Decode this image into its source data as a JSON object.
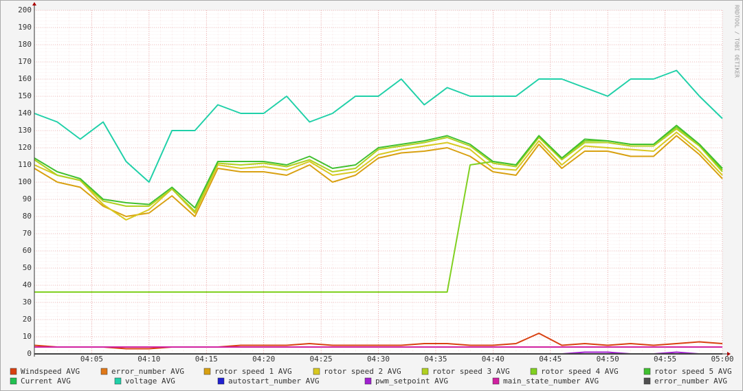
{
  "chart_data": {
    "type": "line",
    "watermark": "RRDTOOL / TOBI OETIKER",
    "x": [
      "04:00",
      "04:02",
      "04:04",
      "04:06",
      "04:08",
      "04:10",
      "04:12",
      "04:14",
      "04:16",
      "04:18",
      "04:20",
      "04:22",
      "04:24",
      "04:26",
      "04:28",
      "04:30",
      "04:32",
      "04:34",
      "04:36",
      "04:38",
      "04:40",
      "04:42",
      "04:44",
      "04:46",
      "04:48",
      "04:50",
      "04:52",
      "04:54",
      "04:56",
      "04:58",
      "05:00"
    ],
    "xlim": [
      "04:00",
      "05:00"
    ],
    "xticks": [
      "04:05",
      "04:10",
      "04:15",
      "04:20",
      "04:25",
      "04:30",
      "04:35",
      "04:40",
      "04:45",
      "04:50",
      "04:55",
      "05:00"
    ],
    "ylim": [
      0,
      200
    ],
    "yticks": [
      0,
      10,
      20,
      30,
      40,
      50,
      60,
      70,
      80,
      90,
      100,
      110,
      120,
      130,
      140,
      150,
      160,
      170,
      180,
      190,
      200
    ],
    "grid": true,
    "series": [
      {
        "name": "Windspeed AVG",
        "color": "#d84010",
        "values": [
          5,
          4,
          4,
          4,
          3,
          3,
          4,
          4,
          4,
          5,
          5,
          5,
          6,
          5,
          5,
          5,
          5,
          6,
          6,
          5,
          5,
          6,
          12,
          5,
          6,
          5,
          6,
          5,
          6,
          7,
          6
        ]
      },
      {
        "name": "error_number AVG",
        "color": "#e07818",
        "values": [
          0,
          0,
          0,
          0,
          0,
          0,
          0,
          0,
          0,
          0,
          0,
          0,
          0,
          0,
          0,
          0,
          0,
          0,
          0,
          0,
          0,
          0,
          0,
          0,
          0,
          0,
          0,
          0,
          0,
          0,
          0
        ]
      },
      {
        "name": "rotor speed 1 AVG",
        "color": "#d8a010",
        "values": [
          108,
          100,
          97,
          86,
          80,
          82,
          92,
          80,
          108,
          106,
          106,
          104,
          110,
          100,
          104,
          114,
          117,
          118,
          120,
          115,
          106,
          104,
          122,
          108,
          118,
          118,
          115,
          115,
          127,
          116,
          102
        ]
      },
      {
        "name": "rotor speed 2 AVG",
        "color": "#d8c820",
        "values": [
          110,
          104,
          101,
          87,
          78,
          84,
          96,
          82,
          110,
          108,
          109,
          107,
          112,
          104,
          106,
          116,
          119,
          121,
          123,
          119,
          108,
          107,
          124,
          110,
          121,
          120,
          119,
          118,
          129,
          118,
          104
        ]
      },
      {
        "name": "rotor speed 3 AVG",
        "color": "#b0d020",
        "values": [
          113,
          104,
          101,
          89,
          86,
          86,
          96,
          83,
          111,
          110,
          111,
          109,
          113,
          106,
          108,
          119,
          121,
          123,
          126,
          121,
          111,
          109,
          126,
          113,
          123,
          123,
          121,
          121,
          131,
          121,
          106
        ]
      },
      {
        "name": "rotor speed 4 AVG",
        "color": "#80d020",
        "values": [
          36,
          36,
          36,
          36,
          36,
          36,
          36,
          36,
          36,
          36,
          36,
          36,
          36,
          36,
          36,
          36,
          36,
          36,
          36,
          110,
          112,
          110,
          127,
          114,
          124,
          124,
          122,
          122,
          132,
          122,
          107
        ]
      },
      {
        "name": "rotor speed 5 AVG",
        "color": "#40c030",
        "values": [
          114,
          106,
          102,
          90,
          88,
          87,
          97,
          85,
          112,
          112,
          112,
          110,
          115,
          108,
          110,
          120,
          122,
          124,
          127,
          122,
          112,
          110,
          127,
          114,
          125,
          124,
          122,
          122,
          133,
          122,
          108
        ]
      },
      {
        "name": "Current AVG",
        "color": "#20c050",
        "values": [
          0,
          0,
          0,
          0,
          0,
          0,
          0,
          0,
          0,
          0,
          0,
          0,
          0,
          0,
          0,
          0,
          0,
          0,
          0,
          0,
          0,
          0,
          0,
          0,
          0,
          0,
          0,
          0,
          0,
          0,
          0
        ]
      },
      {
        "name": "voltage AVG",
        "color": "#20d0a8",
        "values": [
          140,
          135,
          125,
          135,
          112,
          100,
          130,
          130,
          145,
          140,
          140,
          150,
          135,
          140,
          150,
          150,
          160,
          145,
          155,
          150,
          150,
          150,
          160,
          160,
          155,
          150,
          160,
          160,
          165,
          150,
          137
        ]
      },
      {
        "name": "autostart_number AVG",
        "color": "#2020d0",
        "values": [
          0,
          0,
          0,
          0,
          0,
          0,
          0,
          0,
          0,
          0,
          0,
          0,
          0,
          0,
          0,
          0,
          0,
          0,
          0,
          0,
          0,
          0,
          0,
          0,
          0,
          0,
          0,
          0,
          0,
          0,
          0
        ]
      },
      {
        "name": "pwm_setpoint AVG",
        "color": "#a020d0",
        "values": [
          0,
          0,
          0,
          0,
          0,
          0,
          0,
          0,
          0,
          0,
          0,
          0,
          0,
          0,
          0,
          0,
          0,
          0,
          0,
          0,
          0,
          0,
          0,
          0,
          1,
          1,
          0,
          0,
          1,
          0,
          0
        ]
      },
      {
        "name": "main_state_number AVG",
        "color": "#d020a0",
        "values": [
          4,
          4,
          4,
          4,
          4,
          4,
          4,
          4,
          4,
          4,
          4,
          4,
          4,
          4,
          4,
          4,
          4,
          4,
          4,
          4,
          4,
          4,
          4,
          4,
          4,
          4,
          4,
          4,
          4,
          4,
          4
        ]
      },
      {
        "name": "error_number AVG",
        "color": "#505050",
        "values": [
          0,
          0,
          0,
          0,
          0,
          0,
          0,
          0,
          0,
          0,
          0,
          0,
          0,
          0,
          0,
          0,
          0,
          0,
          0,
          0,
          0,
          0,
          0,
          0,
          0,
          0,
          0,
          0,
          0,
          0,
          0
        ]
      }
    ]
  }
}
